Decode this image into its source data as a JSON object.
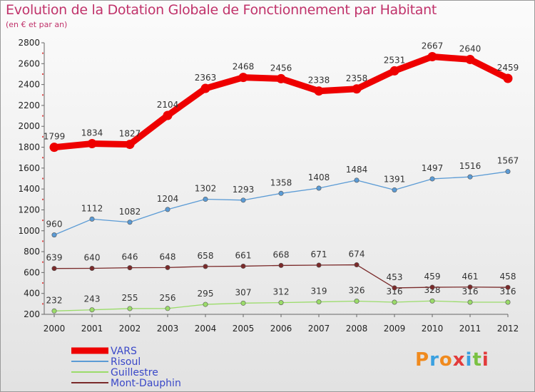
{
  "title": "Evolution de la Dotation Globale de Fonctionnement par Habitant",
  "subtitle": "(en € et par an)",
  "logo": {
    "text": "Proxiti",
    "colors": [
      "#f08a1e",
      "#3aa0e0",
      "#f08a1e",
      "#e23b3b",
      "#3aa0e0",
      "#7ac142",
      "#e23b3b"
    ]
  },
  "chart_data": {
    "type": "line",
    "title": "Evolution de la Dotation Globale de Fonctionnement par Habitant",
    "subtitle": "(en € et par an)",
    "x": [
      2000,
      2001,
      2002,
      2003,
      2004,
      2005,
      2006,
      2007,
      2008,
      2009,
      2010,
      2011,
      2012
    ],
    "ylim": [
      200,
      2800
    ],
    "yticks": [
      200,
      400,
      600,
      800,
      1000,
      1200,
      1400,
      1600,
      1800,
      2000,
      2200,
      2400,
      2600,
      2800
    ],
    "grid": false,
    "legend_position": "bottom-left",
    "series": [
      {
        "name": "VARS",
        "color": "#ee0000",
        "style": "thick",
        "values": [
          1799,
          1834,
          1827,
          2104,
          2363,
          2468,
          2456,
          2338,
          2358,
          2531,
          2667,
          2640,
          2459
        ]
      },
      {
        "name": "Risoul",
        "color": "#5b9bd5",
        "style": "thin",
        "values": [
          960,
          1112,
          1082,
          1204,
          1302,
          1293,
          1358,
          1408,
          1484,
          1391,
          1497,
          1516,
          1567
        ]
      },
      {
        "name": "Guillestre",
        "color": "#9bdc6a",
        "style": "thin",
        "values": [
          232,
          243,
          255,
          256,
          295,
          307,
          312,
          319,
          326,
          316,
          328,
          316,
          316
        ]
      },
      {
        "name": "Mont-Dauphin",
        "color": "#7a2a2a",
        "style": "thin",
        "values": [
          639,
          640,
          646,
          648,
          658,
          661,
          668,
          671,
          674,
          453,
          459,
          461,
          458
        ]
      }
    ]
  }
}
